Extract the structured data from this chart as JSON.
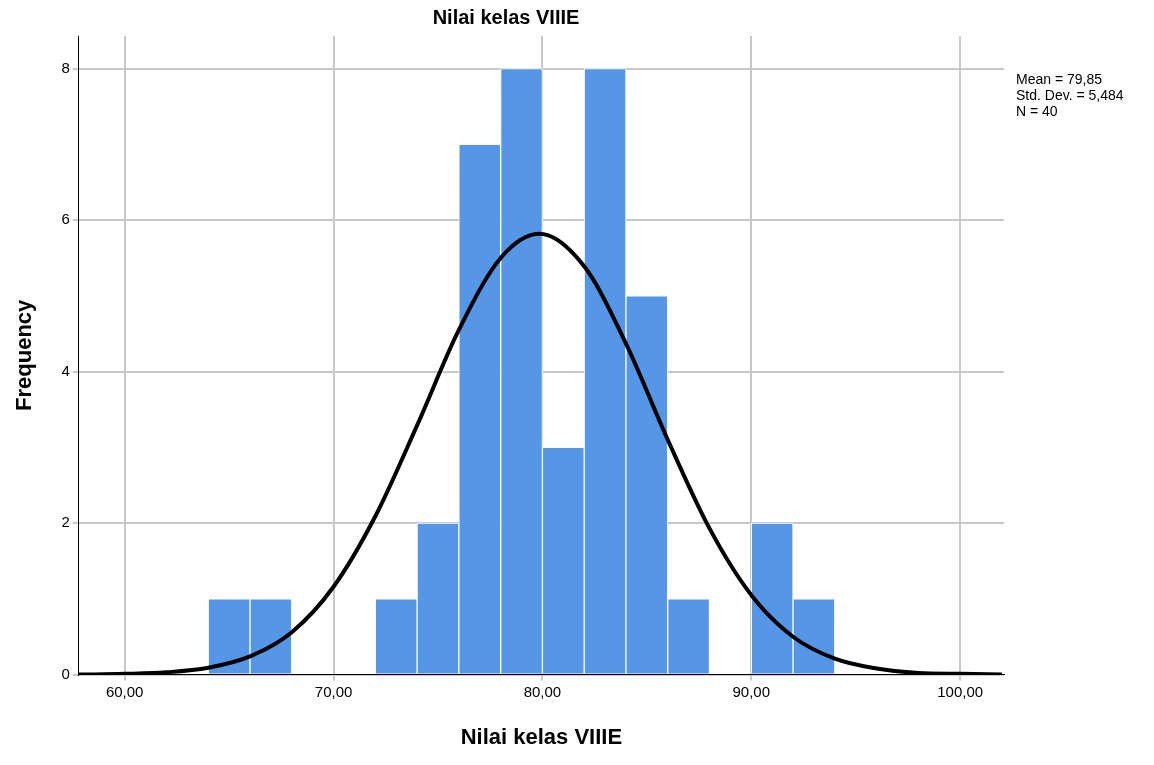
{
  "chart_data": {
    "type": "histogram",
    "title": "Nilai kelas VIIIE",
    "xlabel": "Nilai kelas VIIIE",
    "ylabel": "Frequency",
    "bins": [
      64,
      66,
      68,
      70,
      72,
      74,
      76,
      78,
      80,
      82,
      84,
      86,
      88,
      90,
      92,
      94
    ],
    "values": [
      1,
      1,
      0,
      0,
      1,
      2,
      7,
      8,
      3,
      8,
      5,
      1,
      0,
      2,
      1
    ],
    "color": "#5596e6",
    "series": [
      {
        "type": "line",
        "color": "#000000",
        "x": [
          57.8,
          60,
          62,
          64,
          66,
          68,
          70,
          72,
          74,
          76,
          78,
          79.85,
          82,
          84,
          86,
          88,
          90,
          92,
          94,
          96,
          98,
          100,
          102
        ],
        "values": [
          0,
          0.01,
          0.03,
          0.09,
          0.24,
          0.56,
          1.16,
          2.09,
          3.29,
          4.55,
          5.5,
          5.82,
          5.39,
          4.37,
          3.1,
          1.93,
          1.05,
          0.5,
          0.21,
          0.08,
          0.02,
          0.01,
          0
        ]
      }
    ],
    "xlim": [
      57.8,
      102.1
    ],
    "ylim": [
      0,
      8.43
    ],
    "xticks": [
      {
        "value": 60,
        "label": "60,00"
      },
      {
        "value": 70,
        "label": "70,00"
      },
      {
        "value": 80,
        "label": "80,00"
      },
      {
        "value": 90,
        "label": "90,00"
      },
      {
        "value": 100,
        "label": "100,00"
      }
    ],
    "yticks": [
      0,
      2,
      4,
      6,
      8
    ],
    "grid": true,
    "legend": false,
    "marker": "none",
    "line_style": "solid",
    "annotations": [
      "Mean = 79,85",
      "Std. Dev. = 5,484",
      "N = 40"
    ]
  }
}
